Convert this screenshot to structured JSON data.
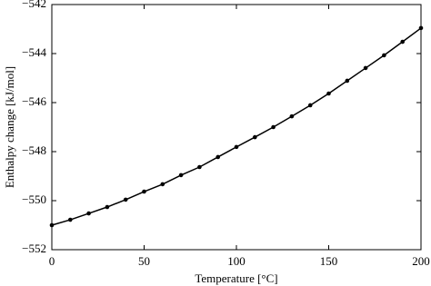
{
  "chart_data": {
    "type": "line",
    "x_label": "Temperature [°C]",
    "y_label": "Enthalpy change [kJ/mol]",
    "x": [
      0,
      10,
      20,
      30,
      40,
      50,
      60,
      70,
      80,
      90,
      100,
      110,
      120,
      130,
      140,
      150,
      160,
      170,
      180,
      190,
      200
    ],
    "series": [
      {
        "color": "#000000",
        "values": [
          -551.0,
          -550.78,
          -550.52,
          -550.26,
          -549.96,
          -549.63,
          -549.33,
          -548.96,
          -548.63,
          -548.22,
          -547.81,
          -547.41,
          -547.0,
          -546.56,
          -546.11,
          -545.63,
          -545.11,
          -544.59,
          -544.07,
          -543.52,
          -542.96
        ]
      }
    ],
    "xlim": [
      0,
      200
    ],
    "xticks": [
      0,
      50,
      100,
      150,
      200
    ],
    "ylim": [
      -552,
      -542
    ],
    "yticks": [
      {
        "value": -552,
        "label": "−552"
      },
      {
        "value": -550,
        "label": "−550"
      },
      {
        "value": -548,
        "label": "−548"
      },
      {
        "value": -546,
        "label": "−546"
      },
      {
        "value": -544,
        "label": "−544"
      },
      {
        "value": -542,
        "label": "−542"
      }
    ],
    "grid": false
  }
}
